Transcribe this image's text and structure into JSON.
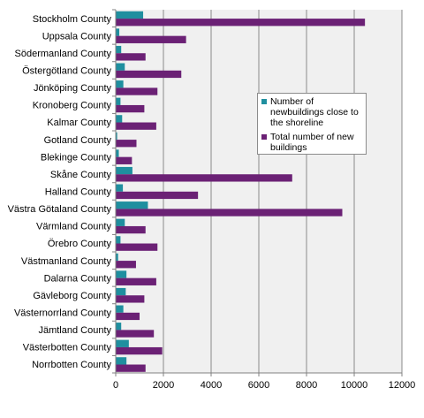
{
  "chart_data": {
    "type": "bar",
    "orientation": "horizontal",
    "categories": [
      "Stockholm County",
      "Uppsala County",
      "Södermanland County",
      "Östergötland County",
      "Jönköping County",
      "Kronoberg County",
      "Kalmar County",
      "Gotland County",
      "Blekinge County",
      "Skåne County",
      "Halland County",
      "Västra Götaland County",
      "Värmland County",
      "Örebro County",
      "Västmanland County",
      "Dalarna County",
      "Gävleborg County",
      "Västernorrland County",
      "Jämtland County",
      "Västerbotten County",
      "Norrbotten County"
    ],
    "series": [
      {
        "name": "Number of newbuildings close to the shoreline",
        "color": "#1f8f9f",
        "values": [
          1150,
          150,
          230,
          380,
          320,
          200,
          270,
          60,
          130,
          700,
          300,
          1350,
          380,
          200,
          100,
          450,
          420,
          320,
          230,
          550,
          450
        ]
      },
      {
        "name": "Total number of new buildings",
        "color": "#6b2175",
        "values": [
          10450,
          2950,
          1250,
          2750,
          1750,
          1200,
          1700,
          870,
          680,
          7400,
          3450,
          9500,
          1250,
          1750,
          850,
          1700,
          1200,
          1000,
          1600,
          1950,
          1250
        ]
      }
    ],
    "xlim": [
      0,
      12000
    ],
    "xticks": [
      0,
      2000,
      4000,
      6000,
      8000,
      10000,
      12000
    ],
    "grid": true,
    "legend_position": "right",
    "plot_background": "#f0f0f0"
  }
}
